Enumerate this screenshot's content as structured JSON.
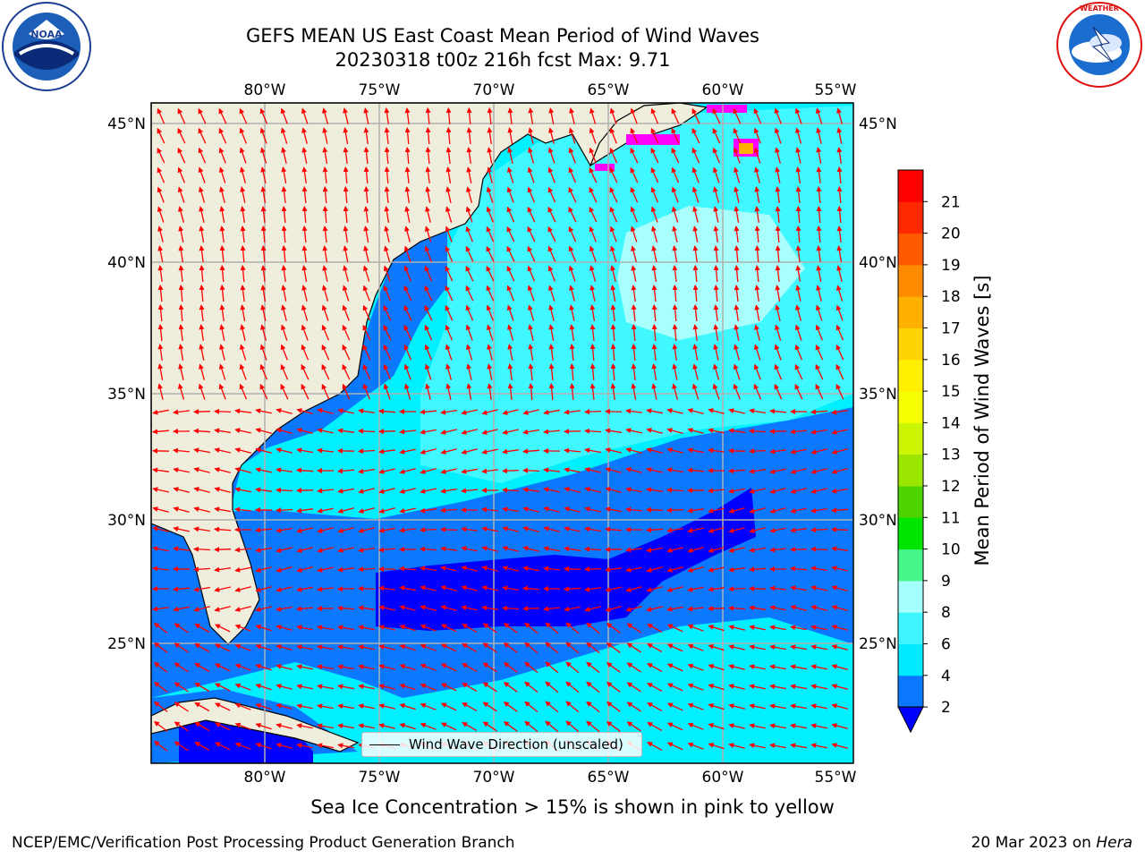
{
  "header": {
    "title": "GEFS MEAN US East Coast Mean Period of Wind Waves",
    "subtitle_line": "20230318 t00z 216h fcst   Max: 9.71"
  },
  "logos": {
    "left": "noaa-logo",
    "right": "nws-logo"
  },
  "map": {
    "lon_ticks": [
      "80°W",
      "75°W",
      "70°W",
      "65°W",
      "60°W",
      "55°W"
    ],
    "lat_ticks": [
      "45°N",
      "40°N",
      "35°N",
      "30°N",
      "25°N"
    ],
    "lon_range": [
      -85,
      -55
    ],
    "lat_range": [
      20.5,
      45.8
    ],
    "legend_label": "Wind Wave Direction (unscaled)",
    "arrow_color": "#ff0000",
    "land_color": "#efeddc",
    "grid": true
  },
  "colorbar": {
    "label": "Mean Period of Wind Waves [s]",
    "ticks": [
      "2",
      "4",
      "6",
      "8",
      "9",
      "10",
      "11",
      "12",
      "13",
      "14",
      "15",
      "16",
      "17",
      "18",
      "19",
      "20",
      "21"
    ],
    "colors": [
      "#0a78ff",
      "#00eaff",
      "#3ff5ff",
      "#a5fffc",
      "#46f68a",
      "#00e600",
      "#4ed400",
      "#9be600",
      "#cbf500",
      "#f5ff00",
      "#fff000",
      "#ffd400",
      "#ffb000",
      "#ff8c00",
      "#ff5a00",
      "#ff2800",
      "#ff0000"
    ],
    "extend_color": "#0000ff"
  },
  "footer": {
    "note": "Sea Ice Concentration > 15% is shown in pink to yellow",
    "credit_left": "NCEP/EMC/Verification Post Processing Product Generation Branch",
    "date_prefix": "20 Mar 2023 on ",
    "machine": "Hera"
  }
}
